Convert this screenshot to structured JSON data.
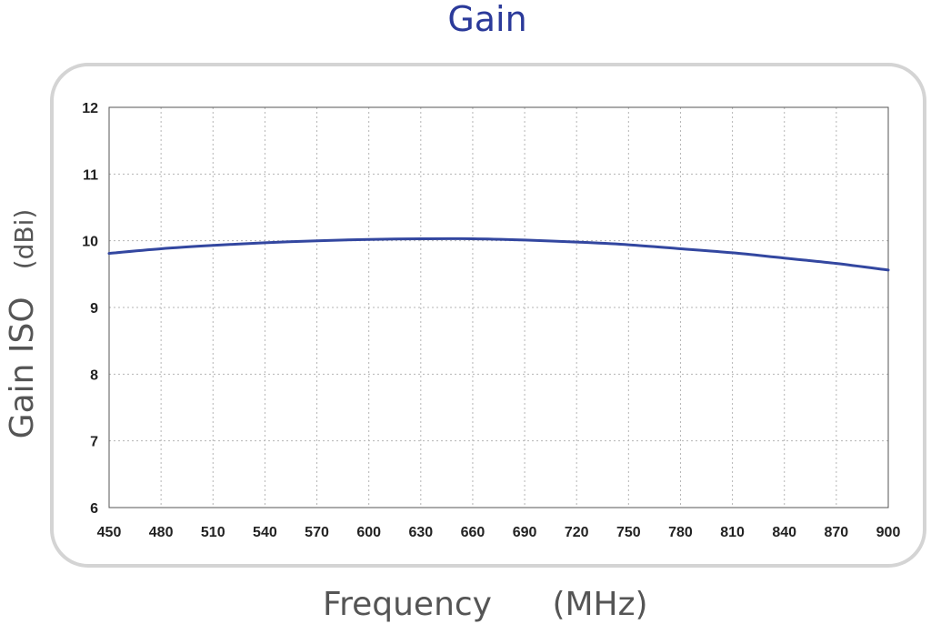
{
  "chart_data": {
    "type": "line",
    "title": "Gain",
    "xlabel": "Frequency",
    "xunit": "(MHz)",
    "ylabel": "Gain ISO",
    "yunit": "(dBi)",
    "xlim": [
      450,
      900
    ],
    "ylim": [
      6,
      12
    ],
    "xticks": [
      "450",
      "480",
      "510",
      "540",
      "570",
      "600",
      "630",
      "660",
      "690",
      "720",
      "750",
      "780",
      "810",
      "840",
      "870",
      "900"
    ],
    "yticks": [
      "6",
      "7",
      "8",
      "9",
      "10",
      "11",
      "12"
    ],
    "grid": true,
    "series": [
      {
        "x": [
          450,
          480,
          510,
          540,
          570,
          600,
          630,
          660,
          690,
          720,
          750,
          780,
          810,
          840,
          870,
          900
        ],
        "y": [
          9.81,
          9.88,
          9.93,
          9.97,
          10.0,
          10.02,
          10.03,
          10.03,
          10.01,
          9.98,
          9.94,
          9.88,
          9.82,
          9.74,
          9.66,
          9.56
        ]
      }
    ],
    "colors": {
      "title": "#2b3a9a",
      "line": "#3347a0",
      "grid": "#b5b5b5",
      "frame": "#d4d4d4"
    }
  }
}
